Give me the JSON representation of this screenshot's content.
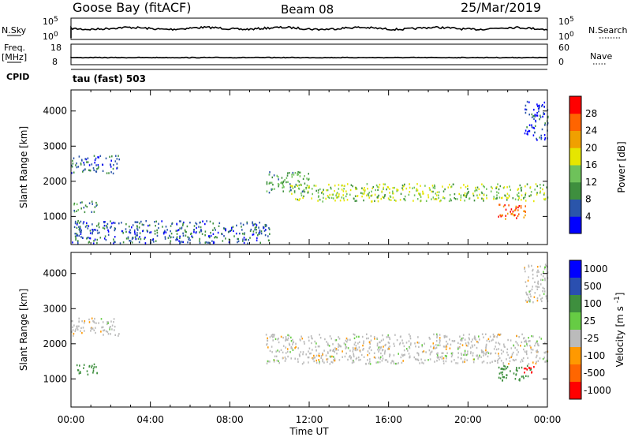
{
  "header": {
    "station": "Goose Bay (fitACF)",
    "beam": "Beam 08",
    "date": "25/Mar/2019"
  },
  "noise_panel": {
    "left_label": "N.Sky",
    "right_label": "N.Search",
    "left_ticks": [
      "10^5",
      "10^0"
    ],
    "right_ticks": [
      "10^5",
      "10^0"
    ]
  },
  "freq_panel": {
    "left_label_top": "Freq.",
    "left_label_unit": "[MHz]",
    "right_label": "Nave",
    "left_ticks": [
      "18",
      "8"
    ],
    "right_ticks": [
      "60",
      "0"
    ]
  },
  "cpid": {
    "label": "CPID",
    "value": "tau (fast) 503"
  },
  "colors": {
    "power_scale": [
      "#0000ff",
      "#2a55aa",
      "#3e8f3e",
      "#6ec25a",
      "#e6e600",
      "#f0a000",
      "#ff6400",
      "#ff0000"
    ],
    "velocity_scale": [
      "#0000ff",
      "#2a4fb0",
      "#3e8f3e",
      "#66cc44",
      "#bbbbbb",
      "#ff9900",
      "#ff6600",
      "#ff0000"
    ],
    "ground_scatter": "#bbbbbb"
  },
  "chart_data": [
    {
      "type": "heatmap",
      "title": "",
      "xlabel": "",
      "ylabel": "Slant Range [km]",
      "xlim": [
        "00:00",
        "24:00"
      ],
      "ylim": [
        200,
        4600
      ],
      "yticks": [
        "1000",
        "2000",
        "3000",
        "4000"
      ],
      "colorbar": {
        "label": "Power [dB]",
        "range": [
          0,
          32
        ],
        "ticks": [
          "4",
          "8",
          "12",
          "16",
          "20",
          "24",
          "28"
        ]
      },
      "scatter_regions": [
        {
          "start_hour": 0.0,
          "end_hour": 2.4,
          "range_min_km": 2250,
          "range_max_km": 2750,
          "power_db": 6
        },
        {
          "start_hour": 0.0,
          "end_hour": 1.3,
          "range_min_km": 1150,
          "range_max_km": 1450,
          "power_db": 10
        },
        {
          "start_hour": 9.8,
          "end_hour": 12.0,
          "range_min_km": 1700,
          "range_max_km": 2300,
          "power_db": 11
        },
        {
          "start_hour": 11.0,
          "end_hour": 24.0,
          "range_min_km": 1450,
          "range_max_km": 1950,
          "power_db": 15
        },
        {
          "start_hour": 21.5,
          "end_hour": 23.0,
          "range_min_km": 950,
          "range_max_km": 1400,
          "power_db": 26
        },
        {
          "start_hour": 22.8,
          "end_hour": 24.0,
          "range_min_km": 3200,
          "range_max_km": 4300,
          "power_db": 5
        },
        {
          "start_hour": 0.0,
          "end_hour": 10.0,
          "range_min_km": 250,
          "range_max_km": 900,
          "power_db": 7
        }
      ]
    },
    {
      "type": "heatmap",
      "title": "",
      "xlabel": "Time UT",
      "ylabel": "Slant Range [km]",
      "xlim": [
        "00:00",
        "24:00"
      ],
      "ylim": [
        200,
        4600
      ],
      "xticks": [
        "00:00",
        "04:00",
        "08:00",
        "12:00",
        "16:00",
        "20:00",
        "00:00"
      ],
      "yticks": [
        "1000",
        "2000",
        "3000",
        "4000"
      ],
      "colorbar": {
        "label": "Velocity [m s^-1]",
        "range": [
          -1000,
          1000
        ],
        "ticks": [
          "1000",
          "500",
          "100",
          "25",
          "-25",
          "-100",
          "-500",
          "-1000"
        ]
      },
      "scatter_regions": [
        {
          "start_hour": 0.0,
          "end_hour": 2.4,
          "range_min_km": 2250,
          "range_max_km": 2750,
          "velocity_ms": 0
        },
        {
          "start_hour": 0.0,
          "end_hour": 1.3,
          "range_min_km": 1150,
          "range_max_km": 1450,
          "velocity_ms": 150
        },
        {
          "start_hour": 9.8,
          "end_hour": 24.0,
          "range_min_km": 1450,
          "range_max_km": 2300,
          "velocity_ms": 0
        },
        {
          "start_hour": 21.5,
          "end_hour": 23.2,
          "range_min_km": 950,
          "range_max_km": 1400,
          "velocity_ms": 100
        },
        {
          "start_hour": 22.5,
          "end_hour": 23.3,
          "range_min_km": 1200,
          "range_max_km": 1400,
          "velocity_ms": -900
        },
        {
          "start_hour": 22.8,
          "end_hour": 24.0,
          "range_min_km": 3200,
          "range_max_km": 4300,
          "velocity_ms": 0
        }
      ]
    }
  ]
}
